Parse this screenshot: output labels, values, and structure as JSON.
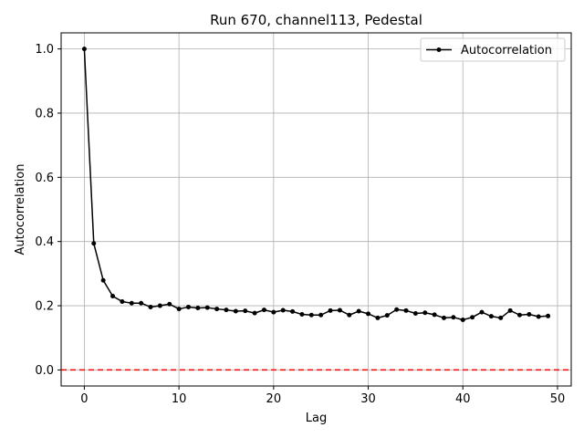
{
  "chart_data": {
    "type": "line",
    "title": "Run 670, channel113, Pedestal",
    "xlabel": "Lag",
    "ylabel": "Autocorrelation",
    "xlim": [
      -2.45,
      51.45
    ],
    "ylim": [
      -0.05,
      1.05
    ],
    "xticks": [
      0,
      10,
      20,
      30,
      40,
      50
    ],
    "yticks": [
      0.0,
      0.2,
      0.4,
      0.6,
      0.8,
      1.0
    ],
    "xtick_labels": [
      "0",
      "10",
      "20",
      "30",
      "40",
      "50"
    ],
    "ytick_labels": [
      "0.0",
      "0.2",
      "0.4",
      "0.6",
      "0.8",
      "1.0"
    ],
    "grid": true,
    "legend_position": "top-right",
    "series": [
      {
        "name": "Autocorrelation",
        "color": "#000000",
        "marker": "circle",
        "x": [
          0,
          1,
          2,
          3,
          4,
          5,
          6,
          7,
          8,
          9,
          10,
          11,
          12,
          13,
          14,
          15,
          16,
          17,
          18,
          19,
          20,
          21,
          22,
          23,
          24,
          25,
          26,
          27,
          28,
          29,
          30,
          31,
          32,
          33,
          34,
          35,
          36,
          37,
          38,
          39,
          40,
          41,
          42,
          43,
          44,
          45,
          46,
          47,
          48,
          49
        ],
        "values": [
          1.0,
          0.394,
          0.279,
          0.23,
          0.213,
          0.208,
          0.208,
          0.196,
          0.2,
          0.205,
          0.19,
          0.196,
          0.193,
          0.194,
          0.19,
          0.187,
          0.183,
          0.184,
          0.177,
          0.187,
          0.18,
          0.186,
          0.182,
          0.173,
          0.171,
          0.171,
          0.185,
          0.186,
          0.171,
          0.183,
          0.175,
          0.162,
          0.17,
          0.188,
          0.185,
          0.176,
          0.178,
          0.172,
          0.162,
          0.164,
          0.156,
          0.164,
          0.18,
          0.167,
          0.162,
          0.185,
          0.171,
          0.173,
          0.166,
          0.168
        ]
      }
    ],
    "reference_line": {
      "y": 0.0,
      "color": "#ff0000",
      "style": "dashed"
    }
  }
}
